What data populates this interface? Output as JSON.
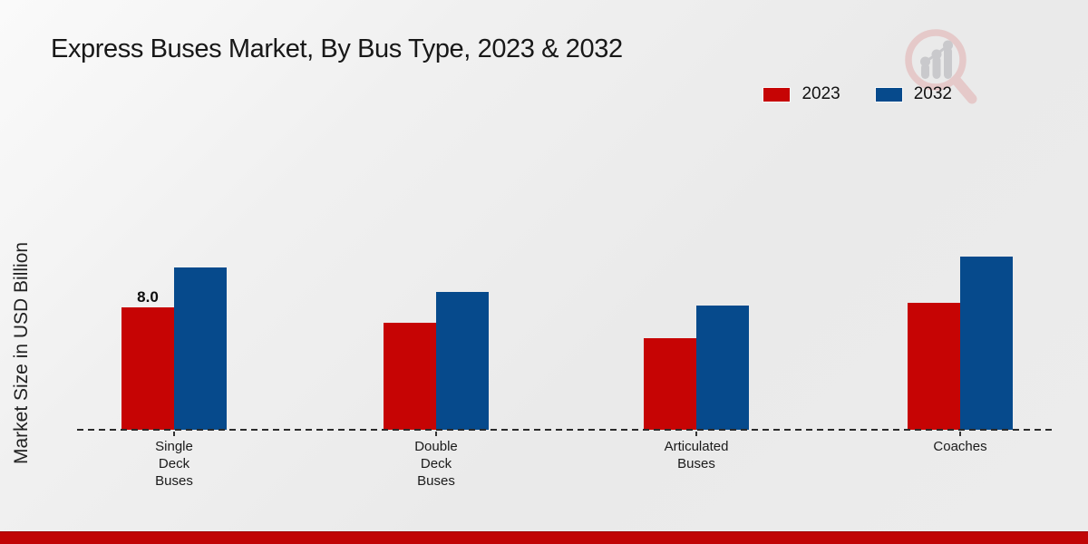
{
  "chart_data": {
    "type": "bar",
    "title": "Express Buses Market, By Bus Type, 2023 & 2032",
    "ylabel": "Market Size in USD Billion",
    "xlabel": "",
    "categories": [
      "Single Deck Buses",
      "Double Deck Buses",
      "Articulated Buses",
      "Coaches"
    ],
    "category_lines": [
      [
        "Single",
        "Deck",
        "Buses"
      ],
      [
        "Double",
        "Deck",
        "Buses"
      ],
      [
        "Articulated",
        "Buses"
      ],
      [
        "Coaches"
      ]
    ],
    "series": [
      {
        "name": "2023",
        "color": "#c60404",
        "values": [
          8.0,
          7.0,
          6.0,
          8.3
        ]
      },
      {
        "name": "2032",
        "color": "#064a8c",
        "values": [
          10.6,
          9.0,
          8.1,
          11.3
        ]
      }
    ],
    "data_labels": [
      {
        "series_index": 0,
        "category_index": 0,
        "text": "8.0"
      }
    ],
    "ylim": [
      0,
      12
    ],
    "grid": false,
    "legend_position": "top-right",
    "baseline_style": "dashed"
  },
  "footer": {
    "accent_color": "#c00505"
  },
  "watermark": {
    "icon": "magnifier-growth-chart-logo"
  }
}
